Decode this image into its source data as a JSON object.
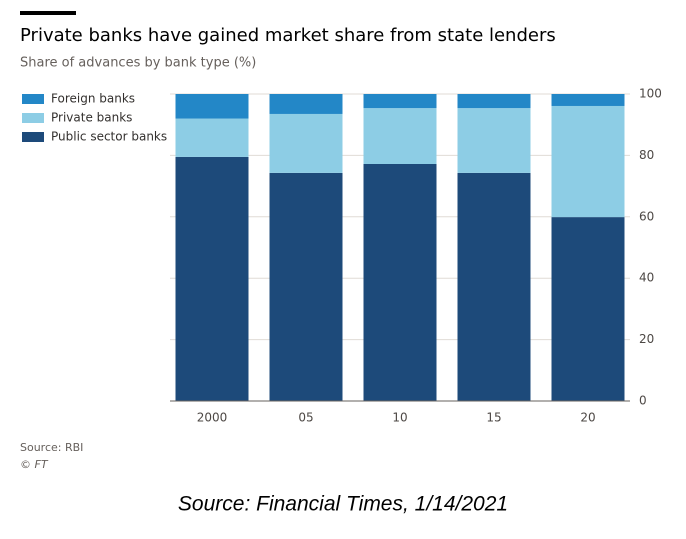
{
  "chart_data": {
    "type": "stacked_bar",
    "title": "Private banks have gained market share from state lenders",
    "subtitle": "Share of advances by bank type (%)",
    "categories": [
      "2000",
      "05",
      "10",
      "15",
      "20"
    ],
    "series": [
      {
        "name": "Foreign banks",
        "color": "#2387c7",
        "values": [
          8,
          6.5,
          4.6,
          4.6,
          3.9
        ]
      },
      {
        "name": "Private banks",
        "color": "#8dcde5",
        "values": [
          12.5,
          19.2,
          18.2,
          21.1,
          36.2
        ]
      },
      {
        "name": "Public sector banks",
        "color": "#1d4a7a",
        "values": [
          79.5,
          74.3,
          77.2,
          74.3,
          59.9
        ]
      }
    ],
    "ylim": [
      0,
      100
    ],
    "yticks": [
      0,
      20,
      40,
      60,
      80,
      100
    ],
    "grid": true,
    "legend": "top-left",
    "source": "Source: RBI",
    "credit": "© FT",
    "caption": "Source: Financial Times, 1/14/2021"
  }
}
